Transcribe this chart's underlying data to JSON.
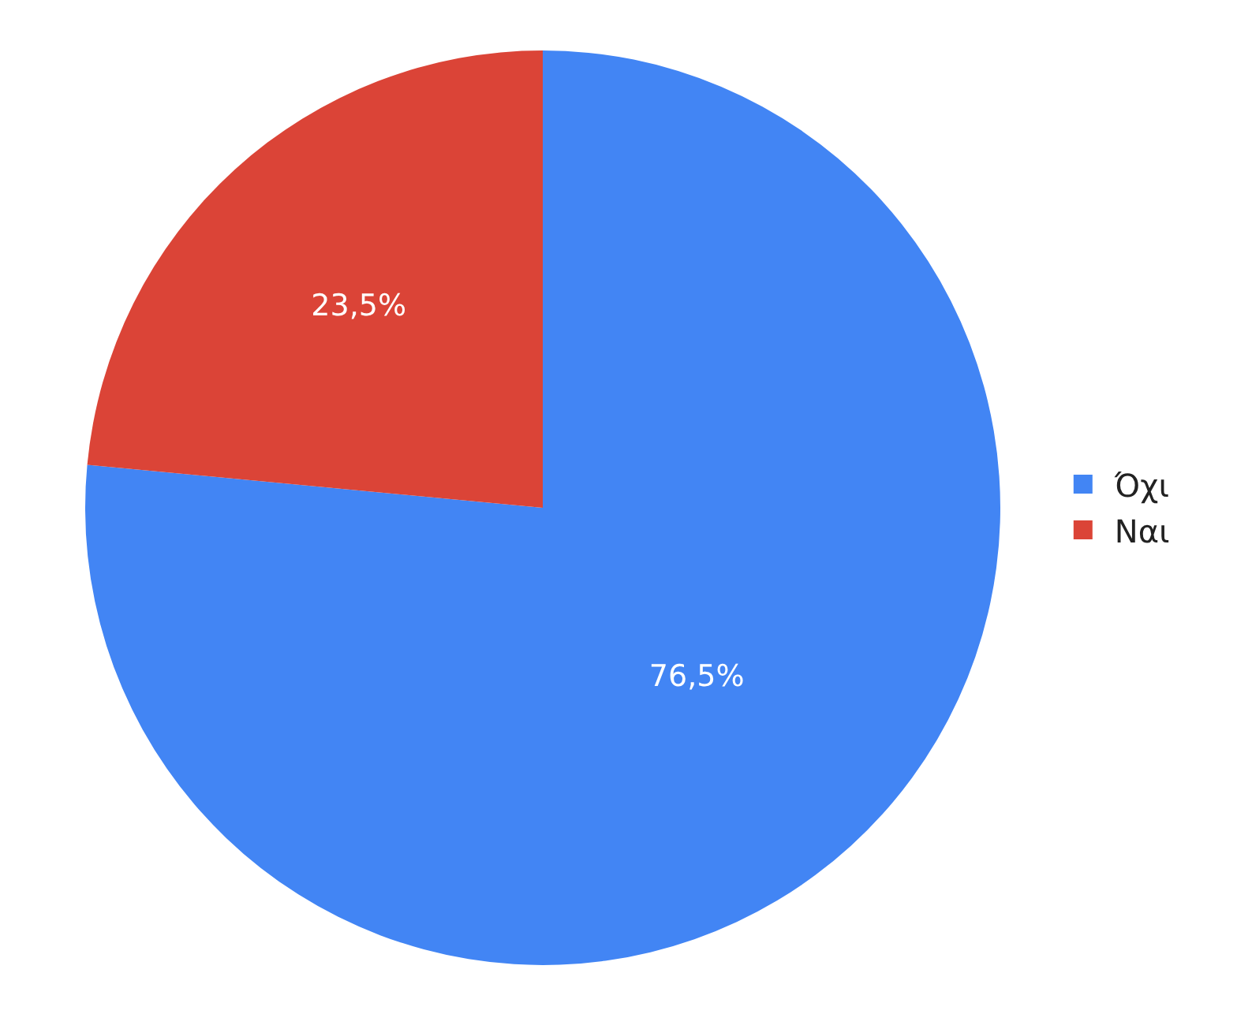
{
  "chart_data": {
    "type": "pie",
    "categories": [
      "Όχι",
      "Ναι"
    ],
    "values": [
      76.5,
      23.5
    ],
    "colors": [
      "#4285f4",
      "#db4437"
    ],
    "value_labels": [
      "76,5%",
      "23,5%"
    ],
    "legend": "right"
  }
}
